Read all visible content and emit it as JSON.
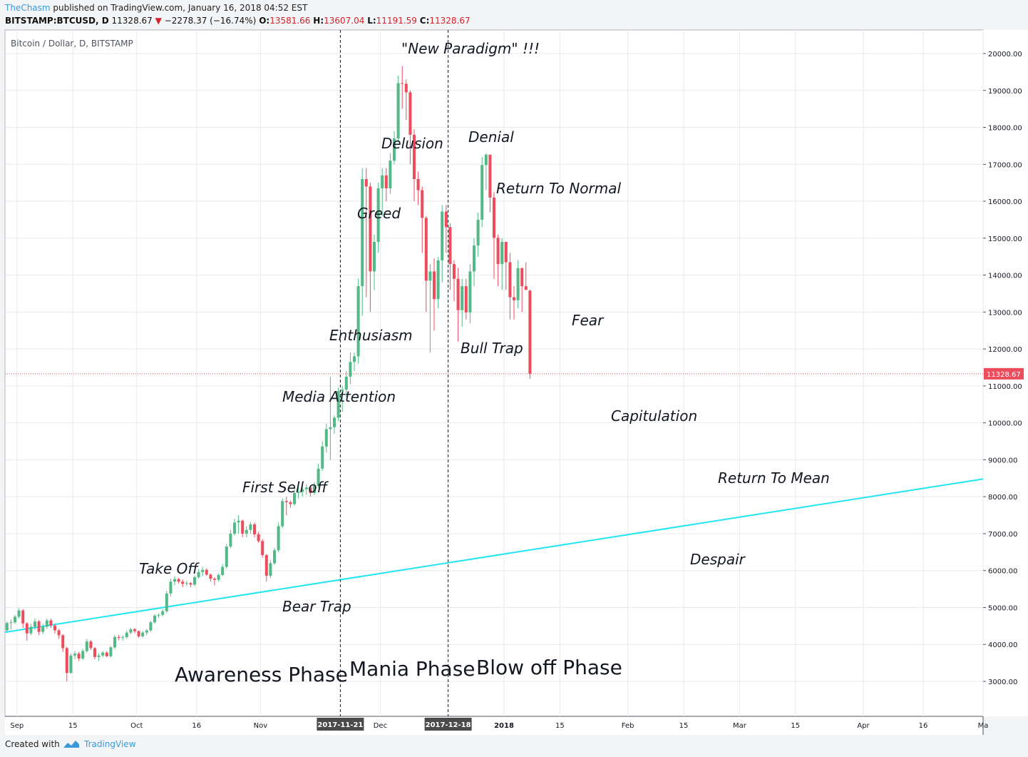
{
  "header": {
    "author": "TheChasm",
    "published_text": " published on TradingView.com, January 16, 2018 04:52 EST",
    "symbol": "BITSTAMP:BTCUSD, D",
    "last_price": "11328.67",
    "change_icon": "down-triangle-icon",
    "change": "−2278.37 (−16.74%)",
    "open_label": "O:",
    "open": "13581.66",
    "high_label": "H:",
    "high": "13607.04",
    "low_label": "L:",
    "low": "11191.59",
    "close_label": "C:",
    "close": "11328.67"
  },
  "legend_title": "Bitcoin / Dollar, D, BITSTAMP",
  "footer": {
    "created_with": "Created with",
    "tradingview": "TradingView",
    "logo_icon": "tradingview-cloud-icon"
  },
  "colors": {
    "up": "#53b987",
    "down": "#eb4d5c",
    "trendline": "#22e5f2",
    "price_tag": "#eb4d5c",
    "author_link": "#3b9ad6"
  },
  "chart_data": {
    "type": "candlestick",
    "title": "Bitcoin / Dollar, D, BITSTAMP",
    "ylim": [
      2000,
      20700
    ],
    "y_ticks": [
      "20000.00",
      "19000.00",
      "18000.00",
      "17000.00",
      "16000.00",
      "15000.00",
      "14000.00",
      "13000.00",
      "12000.00",
      "11000.00",
      "10000.00",
      "9000.00",
      "8000.00",
      "7000.00",
      "6000.00",
      "5000.00",
      "4000.00",
      "3000.00"
    ],
    "x_ticks": [
      {
        "date": "2017-09-01",
        "label": "Sep"
      },
      {
        "date": "2017-09-15",
        "label": "15"
      },
      {
        "date": "2017-10-01",
        "label": "Oct"
      },
      {
        "date": "2017-10-16",
        "label": "16"
      },
      {
        "date": "2017-11-01",
        "label": "Nov"
      },
      {
        "date": "2017-12-01",
        "label": "Dec"
      },
      {
        "date": "2018-01-01",
        "label": "2018"
      },
      {
        "date": "2018-01-15",
        "label": "15"
      },
      {
        "date": "2018-02-01",
        "label": "Feb"
      },
      {
        "date": "2018-02-15",
        "label": "15"
      },
      {
        "date": "2018-03-01",
        "label": "Mar"
      },
      {
        "date": "2018-03-15",
        "label": "15"
      },
      {
        "date": "2018-04-01",
        "label": "Apr"
      },
      {
        "date": "2018-04-16",
        "label": "16"
      },
      {
        "date": "2018-05-01",
        "label": "Ma"
      }
    ],
    "x_range": [
      "2017-08-29",
      "2018-05-01"
    ],
    "date_markers": [
      {
        "date": "2017-11-21",
        "label": "2017-11-21"
      },
      {
        "date": "2017-12-18",
        "label": "2017-12-18"
      }
    ],
    "last_price_label": "11328.67",
    "last_price": 11328.67,
    "trendline": {
      "from": {
        "date": "2017-08-29",
        "value": 4330
      },
      "to": {
        "date": "2018-05-01",
        "value": 8480
      }
    },
    "candles": {
      "start_date": "2017-08-29",
      "close": [
        4580,
        4600,
        4750,
        4920,
        4570,
        4300,
        4480,
        4620,
        4340,
        4480,
        4650,
        4510,
        4380,
        4250,
        3900,
        3230,
        3700,
        3750,
        3620,
        3820,
        4080,
        3900,
        3660,
        3700,
        3780,
        3680,
        3920,
        4200,
        4180,
        4200,
        4320,
        4410,
        4360,
        4220,
        4320,
        4380,
        4600,
        4780,
        4800,
        4900,
        5380,
        5700,
        5770,
        5700,
        5640,
        5660,
        5620,
        5820,
        5960,
        6020,
        5890,
        5780,
        5750,
        5880,
        6100,
        6650,
        7000,
        7300,
        7350,
        7000,
        7100,
        7250,
        6980,
        6800,
        6420,
        5860,
        6200,
        6550,
        7200,
        7880,
        7850,
        7800,
        8100,
        8130,
        8200,
        8250,
        8100,
        8290,
        8760,
        9360,
        9830,
        9880,
        10140,
        10860,
        10900,
        11250,
        11650,
        11800,
        13700,
        16600,
        16400,
        14100,
        14900,
        16350,
        16700,
        16350,
        17100,
        17700,
        19200,
        19180,
        18950,
        17800,
        16600,
        16300,
        15550,
        13850,
        14100,
        13350,
        14400,
        15720,
        15300,
        14300,
        13900,
        13050,
        13700,
        12990,
        14100,
        14800,
        15500,
        16980,
        17260,
        16100,
        15010,
        14300,
        14900,
        14350,
        13400,
        13320,
        14190,
        13700,
        13600,
        11328.67
      ],
      "open": [
        4380,
        4580,
        4600,
        4750,
        4920,
        4570,
        4300,
        4480,
        4620,
        4340,
        4480,
        4650,
        4510,
        4380,
        4250,
        3900,
        3230,
        3700,
        3750,
        3620,
        3820,
        4080,
        3900,
        3660,
        3700,
        3780,
        3680,
        3920,
        4200,
        4180,
        4200,
        4320,
        4410,
        4360,
        4220,
        4320,
        4380,
        4600,
        4780,
        4800,
        4900,
        5380,
        5700,
        5770,
        5700,
        5640,
        5660,
        5620,
        5820,
        5960,
        6020,
        5890,
        5780,
        5750,
        5880,
        6100,
        6650,
        7000,
        7300,
        7350,
        7000,
        7100,
        7250,
        6980,
        6800,
        6420,
        5860,
        6200,
        6550,
        7200,
        7880,
        7850,
        7800,
        8100,
        8130,
        8200,
        8250,
        8100,
        8290,
        8760,
        9360,
        9830,
        9880,
        10140,
        10860,
        10900,
        11250,
        11650,
        11800,
        13700,
        16600,
        16400,
        14100,
        14900,
        16350,
        16700,
        16350,
        17100,
        17700,
        19200,
        19180,
        18950,
        17800,
        16600,
        16300,
        15550,
        13850,
        14100,
        13350,
        14400,
        15720,
        15300,
        14300,
        13900,
        13050,
        13700,
        12990,
        14100,
        14800,
        15500,
        16980,
        17260,
        16100,
        15010,
        14300,
        14900,
        14350,
        13400,
        13320,
        14190,
        13700,
        13581.66
      ],
      "high": [
        4620,
        4680,
        4800,
        4980,
        4960,
        4600,
        4560,
        4700,
        4660,
        4560,
        4700,
        4700,
        4560,
        4420,
        4280,
        3940,
        3760,
        3820,
        3800,
        3880,
        4150,
        4120,
        3930,
        3760,
        3820,
        3820,
        3960,
        4260,
        4260,
        4240,
        4370,
        4450,
        4450,
        4380,
        4360,
        4420,
        4640,
        4820,
        4840,
        4960,
        5450,
        5780,
        5850,
        5800,
        5760,
        5720,
        5690,
        5870,
        6040,
        6100,
        6060,
        5920,
        5820,
        5920,
        6180,
        6720,
        7100,
        7400,
        7500,
        7380,
        7200,
        7320,
        7300,
        7050,
        6850,
        6450,
        6280,
        6620,
        7300,
        7950,
        8000,
        7900,
        8200,
        8250,
        8280,
        8340,
        8300,
        8400,
        8900,
        9500,
        9980,
        11250,
        10200,
        10960,
        11000,
        11400,
        11900,
        11900,
        13900,
        16900,
        16900,
        16500,
        15100,
        16500,
        16900,
        16900,
        17300,
        17900,
        19400,
        19660,
        19300,
        19000,
        17950,
        16800,
        16400,
        15600,
        14300,
        14450,
        14500,
        15900,
        15900,
        15400,
        14400,
        14200,
        13900,
        13900,
        14300,
        15000,
        15700,
        17200,
        17300,
        17250,
        16250,
        15100,
        15000,
        14900,
        14600,
        13700,
        14400,
        14200,
        14350,
        13607.04
      ],
      "low": [
        4350,
        4400,
        4550,
        4700,
        4450,
        4100,
        4250,
        4400,
        4250,
        4280,
        4420,
        4450,
        4300,
        4150,
        3800,
        3000,
        3200,
        3600,
        3550,
        3580,
        3780,
        3850,
        3600,
        3550,
        3650,
        3650,
        3650,
        3880,
        4120,
        4100,
        4150,
        4280,
        4300,
        4180,
        4180,
        4250,
        4340,
        4560,
        4720,
        4760,
        4850,
        5300,
        5600,
        5650,
        5550,
        5580,
        5550,
        5580,
        5780,
        5850,
        5850,
        5700,
        5600,
        5700,
        5850,
        6050,
        6600,
        6950,
        7000,
        6900,
        6900,
        7000,
        6900,
        6750,
        6350,
        5700,
        5800,
        6150,
        6500,
        7150,
        7500,
        7700,
        7750,
        7950,
        8000,
        8050,
        8000,
        8050,
        8250,
        8700,
        9200,
        9000,
        9700,
        10050,
        10300,
        10700,
        11050,
        11400,
        11600,
        12900,
        13400,
        13000,
        13600,
        14600,
        15600,
        16000,
        16200,
        17000,
        17600,
        18500,
        18200,
        17000,
        16000,
        15900,
        14600,
        13000,
        11900,
        12500,
        13100,
        13800,
        14600,
        13600,
        13300,
        12200,
        12600,
        12800,
        12700,
        13700,
        14500,
        15300,
        16300,
        15700,
        13900,
        13700,
        13600,
        13600,
        12800,
        12800,
        13100,
        13000,
        13600,
        11191.59
      ]
    }
  },
  "annotations": [
    {
      "text": "\"New Paradigm\" !!!",
      "key": "new_paradigm"
    },
    {
      "text": "Delusion",
      "key": "delusion"
    },
    {
      "text": "Denial",
      "key": "denial"
    },
    {
      "text": "Return To Normal",
      "key": "return_to_normal"
    },
    {
      "text": "Greed",
      "key": "greed"
    },
    {
      "text": "Fear",
      "key": "fear"
    },
    {
      "text": "Enthusiasm",
      "key": "enthusiasm"
    },
    {
      "text": "Bull Trap",
      "key": "bull_trap"
    },
    {
      "text": "Media Attention",
      "key": "media_attention"
    },
    {
      "text": "Capitulation",
      "key": "capitulation"
    },
    {
      "text": "First Sell off",
      "key": "first_sell_off"
    },
    {
      "text": "Return To Mean",
      "key": "return_to_mean"
    },
    {
      "text": "Take Off",
      "key": "take_off"
    },
    {
      "text": "Despair",
      "key": "despair"
    },
    {
      "text": "Bear Trap",
      "key": "bear_trap"
    }
  ],
  "phases": [
    {
      "text": "Awareness Phase",
      "key": "awareness"
    },
    {
      "text": "Mania Phase",
      "key": "mania"
    },
    {
      "text": "Blow off Phase",
      "key": "blow_off"
    }
  ]
}
